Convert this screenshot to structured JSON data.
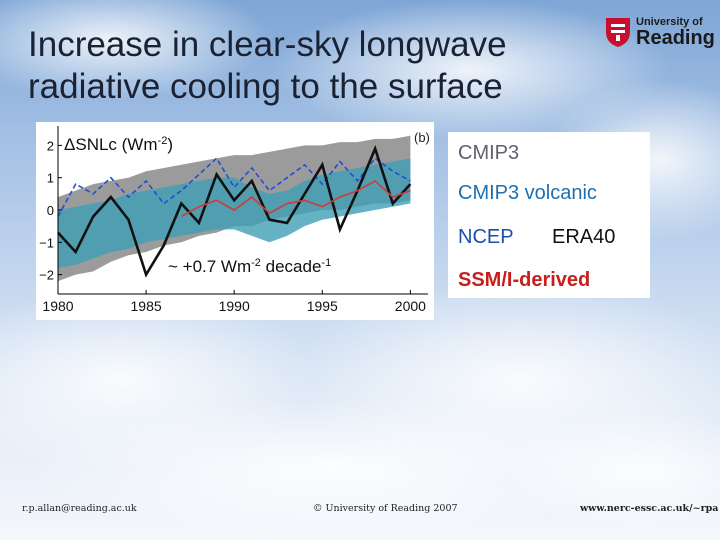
{
  "slide": {
    "title": "Increase in clear-sky longwave radiative cooling to the surface"
  },
  "logo": {
    "line1": "University of",
    "line2": "Reading",
    "crest": "university-crest-icon"
  },
  "legend": {
    "cmip3": "CMIP3",
    "cmip3_volcanic": "CMIP3 volcanic",
    "ncep": "NCEP",
    "era40": "ERA40",
    "ssmi": "SSM/I-derived"
  },
  "footer": {
    "email": "r.p.allan@reading.ac.uk",
    "copyright": "© University of Reading 2007",
    "url": "www.nerc-essc.ac.uk/~rpa"
  },
  "colors": {
    "cmip3_band": "#8a8a8a",
    "cmip3_volcanic_band": "#3f9fb6",
    "ncep": "#1f4fd6",
    "era40": "#111111",
    "ssmi": "#d23a3a"
  },
  "chart_data": {
    "type": "line",
    "panel_label": "(b)",
    "ylabel": "ΔSNLc (Wm-2)",
    "ylabel_parts": {
      "quantity": "ΔSNLc (Wm",
      "exp": "-2",
      "close": ")"
    },
    "trend_annotation": {
      "prefix": "~ +0.7 Wm",
      "exp1": "-2",
      "mid": " decade",
      "exp2": "-1"
    },
    "xlim": [
      1980,
      2001
    ],
    "ylim": [
      -2.6,
      2.6
    ],
    "x_ticks": [
      1980,
      1985,
      1990,
      1995,
      2000
    ],
    "x_tick_labels": [
      "1980",
      "1985",
      "1990",
      "1995",
      "2000"
    ],
    "y_ticks": [
      -2,
      -1,
      0,
      1,
      2
    ],
    "y_tick_labels": [
      "−2",
      "−1",
      "0",
      "1",
      "2"
    ],
    "x": [
      1980,
      1981,
      1982,
      1983,
      1984,
      1985,
      1986,
      1987,
      1988,
      1989,
      1990,
      1991,
      1992,
      1993,
      1994,
      1995,
      1996,
      1997,
      1998,
      1999,
      2000
    ],
    "bands": [
      {
        "name": "CMIP3",
        "lower": [
          -2.2,
          -2.0,
          -1.9,
          -1.6,
          -1.4,
          -1.3,
          -1.1,
          -1.0,
          -0.8,
          -0.7,
          -0.5,
          -0.5,
          -0.3,
          -0.2,
          -0.1,
          0.0,
          0.0,
          0.1,
          0.2,
          0.2,
          0.3
        ],
        "upper": [
          0.4,
          0.6,
          0.8,
          0.9,
          1.0,
          1.2,
          1.3,
          1.4,
          1.5,
          1.6,
          1.7,
          1.7,
          1.8,
          1.9,
          2.0,
          2.0,
          2.1,
          2.1,
          2.2,
          2.2,
          2.3
        ]
      },
      {
        "name": "CMIP3 volcanic",
        "lower": [
          -1.8,
          -1.7,
          -1.5,
          -1.3,
          -1.2,
          -1.0,
          -0.9,
          -0.8,
          -0.7,
          -0.6,
          -0.6,
          -0.8,
          -1.0,
          -0.8,
          -0.5,
          -0.3,
          -0.2,
          -0.1,
          0.0,
          0.1,
          0.2
        ],
        "upper": [
          0.0,
          0.1,
          0.2,
          0.3,
          0.5,
          0.6,
          0.7,
          0.8,
          0.9,
          1.0,
          1.0,
          0.7,
          0.5,
          0.6,
          0.9,
          1.1,
          1.2,
          1.3,
          1.4,
          1.5,
          1.6
        ]
      }
    ],
    "series": [
      {
        "name": "NCEP",
        "style": "dashed",
        "values": [
          -0.2,
          0.8,
          0.5,
          1.0,
          0.4,
          0.9,
          0.2,
          0.6,
          1.1,
          1.6,
          0.7,
          1.3,
          0.6,
          1.0,
          1.4,
          0.8,
          1.5,
          0.9,
          1.6,
          1.2,
          0.9
        ]
      },
      {
        "name": "ERA40",
        "style": "solid",
        "values": [
          -0.7,
          -1.3,
          -0.2,
          0.4,
          -0.3,
          -2.0,
          -1.1,
          0.2,
          -0.4,
          1.1,
          0.3,
          0.9,
          -0.3,
          -0.4,
          0.5,
          1.4,
          -0.6,
          0.6,
          1.9,
          0.2,
          0.8
        ]
      },
      {
        "name": "SSM/I-derived",
        "style": "solid",
        "values": [
          null,
          null,
          null,
          null,
          null,
          null,
          null,
          -0.2,
          0.1,
          0.3,
          0.0,
          0.4,
          -0.1,
          0.2,
          0.3,
          0.1,
          0.4,
          0.6,
          0.9,
          0.4,
          0.6
        ]
      }
    ]
  }
}
